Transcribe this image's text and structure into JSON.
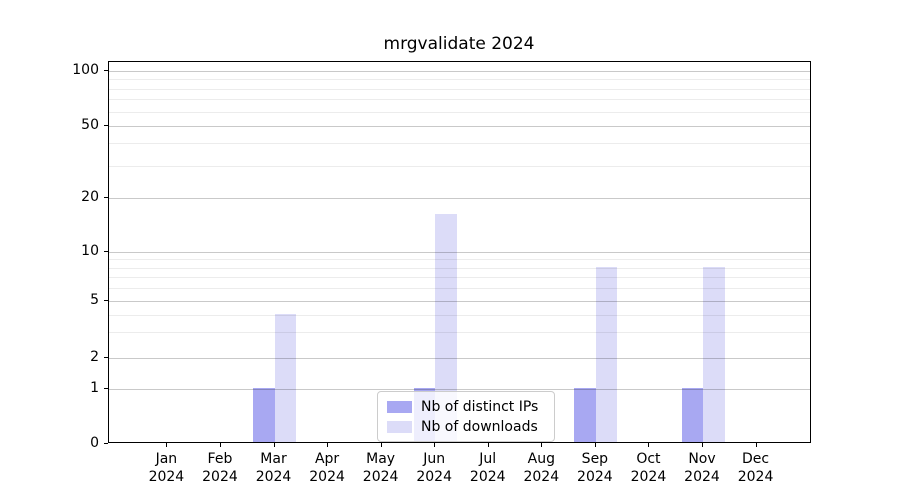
{
  "title": "mrgvalidate 2024",
  "y_axis": {
    "tick_labels": [
      "0",
      "1",
      "2",
      "5",
      "10",
      "20",
      "50",
      "100"
    ]
  },
  "x_axis": {
    "months": [
      "Jan",
      "Feb",
      "Mar",
      "Apr",
      "May",
      "Jun",
      "Jul",
      "Aug",
      "Sep",
      "Oct",
      "Nov",
      "Dec"
    ],
    "year": "2024"
  },
  "legend": {
    "items": [
      {
        "label": "Nb of distinct IPs",
        "color": "#a8a8f2"
      },
      {
        "label": "Nb of downloads",
        "color": "#dcdcf8"
      }
    ]
  },
  "chart_data": {
    "type": "bar",
    "title": "mrgvalidate 2024",
    "categories": [
      "Jan 2024",
      "Feb 2024",
      "Mar 2024",
      "Apr 2024",
      "May 2024",
      "Jun 2024",
      "Jul 2024",
      "Aug 2024",
      "Sep 2024",
      "Oct 2024",
      "Nov 2024",
      "Dec 2024"
    ],
    "series": [
      {
        "name": "Nb of distinct IPs",
        "color": "#a8a8f2",
        "values": [
          0,
          0,
          1,
          0,
          0,
          1,
          0,
          0,
          1,
          0,
          1,
          0
        ]
      },
      {
        "name": "Nb of downloads",
        "color": "#dcdcf8",
        "values": [
          0,
          0,
          4,
          0,
          0,
          16,
          0,
          0,
          8,
          0,
          8,
          0
        ]
      }
    ],
    "xlabel": "",
    "ylabel": "",
    "yscale": "symlog",
    "ylim": [
      0,
      115
    ],
    "y_major_ticks": [
      0,
      1,
      2,
      5,
      10,
      20,
      50,
      100
    ],
    "y_minor_gridlines": [
      3,
      4,
      6,
      7,
      8,
      9,
      30,
      40,
      60,
      70,
      80,
      90
    ],
    "grid": true,
    "legend_position": "lower center"
  }
}
